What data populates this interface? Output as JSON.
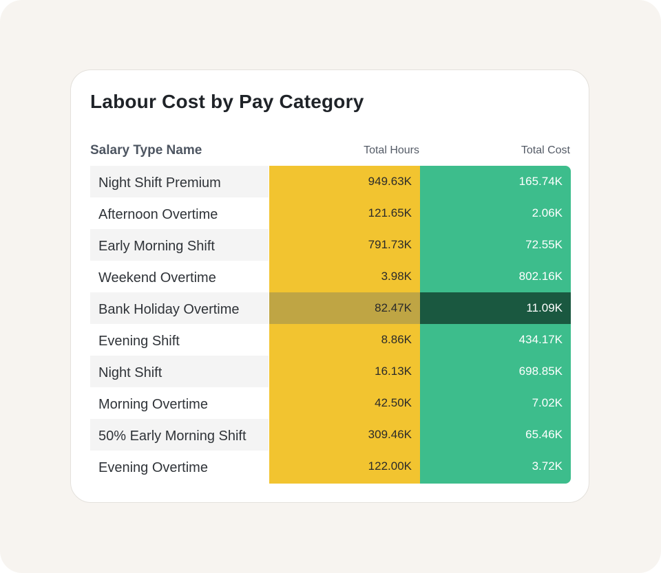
{
  "title": "Labour Cost by Pay Category",
  "columns": {
    "name": "Salary Type Name",
    "hours": "Total Hours",
    "cost": "Total Cost"
  },
  "colors": {
    "hours_fill": "#f2c430",
    "cost_fill": "#3dbd8c",
    "highlight_hours": "#bfa544",
    "highlight_cost": "#1a5840"
  },
  "rows": [
    {
      "name": "Night Shift Premium",
      "hours": "949.63K",
      "cost": "165.74K"
    },
    {
      "name": "Afternoon Overtime",
      "hours": "121.65K",
      "cost": "2.06K"
    },
    {
      "name": "Early Morning Shift",
      "hours": "791.73K",
      "cost": "72.55K"
    },
    {
      "name": "Weekend Overtime",
      "hours": "3.98K",
      "cost": "802.16K"
    },
    {
      "name": "Bank Holiday Overtime",
      "hours": "82.47K",
      "cost": "11.09K"
    },
    {
      "name": "Evening Shift",
      "hours": "8.86K",
      "cost": "434.17K"
    },
    {
      "name": "Night Shift",
      "hours": "16.13K",
      "cost": "698.85K"
    },
    {
      "name": "Morning Overtime",
      "hours": "42.50K",
      "cost": "7.02K"
    },
    {
      "name": "50% Early Morning Shift",
      "hours": "309.46K",
      "cost": "65.46K"
    },
    {
      "name": "Evening Overtime",
      "hours": "122.00K",
      "cost": "3.72K"
    }
  ],
  "highlighted_row": "Bank Holiday Overtime"
}
